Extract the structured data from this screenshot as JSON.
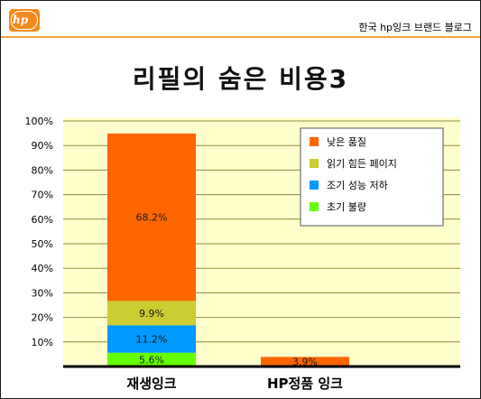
{
  "header": {
    "logo_text": "hp",
    "blog_name": "한국 hp잉크 브랜드 블로그",
    "title": "리필의 숨은 비용3"
  },
  "colors": {
    "plot_background": "#ffffcc",
    "gridline": "#8c8c3a",
    "header_line": "#f2a13a",
    "logo": "#f28a1c"
  },
  "chart_data": {
    "type": "bar",
    "stacked": true,
    "categories": [
      "재생잉크",
      "HP정품 잉크"
    ],
    "series": [
      {
        "name": "낮은 품질",
        "color": "#ff6600",
        "values": [
          68.2,
          3.9
        ]
      },
      {
        "name": "읽기 힘든 페이지",
        "color": "#cccc33",
        "values": [
          9.9,
          0
        ]
      },
      {
        "name": "조기 성능 저하",
        "color": "#0099ff",
        "values": [
          11.2,
          0
        ]
      },
      {
        "name": "초기 불량",
        "color": "#66ff00",
        "values": [
          5.6,
          0
        ]
      }
    ],
    "data_labels": [
      [
        "68.2%",
        "3.9%"
      ],
      [
        "9.9%",
        ""
      ],
      [
        "11.2%",
        ""
      ],
      [
        "5.6%",
        ""
      ]
    ],
    "stack_order": [
      "초기 불량",
      "조기 성능 저하",
      "읽기 힘든 페이지",
      "낮은 품질"
    ],
    "y_ticks": [
      "10%",
      "20%",
      "30%",
      "40%",
      "50%",
      "60%",
      "70%",
      "80%",
      "90%",
      "100%"
    ],
    "ylim": [
      0,
      100
    ],
    "grid": true,
    "legend_position": "top-right",
    "title": "리필의 숨은 비용3",
    "xlabel": "",
    "ylabel": ""
  }
}
